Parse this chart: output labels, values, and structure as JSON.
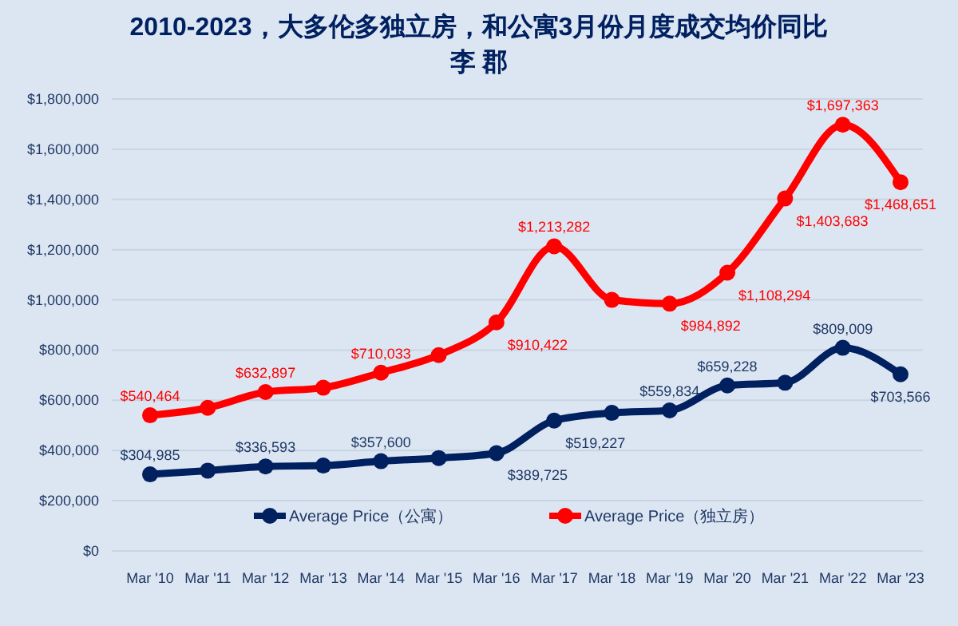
{
  "chart_data": {
    "type": "line",
    "title": "2010-2023，大多伦多独立房，和公寓3月份月度成交均价同比",
    "subtitle": "李 郡",
    "categories": [
      "Mar '10",
      "Mar '11",
      "Mar '12",
      "Mar '13",
      "Mar '14",
      "Mar '15",
      "Mar '16",
      "Mar '17",
      "Mar '18",
      "Mar '19",
      "Mar '20",
      "Mar '21",
      "Mar '22",
      "Mar '23"
    ],
    "series": [
      {
        "name": "Average Price（公寓）",
        "color": "#002060",
        "values": [
          304985,
          320000,
          336593,
          340000,
          357600,
          370000,
          389725,
          519227,
          550000,
          559834,
          659228,
          670000,
          809009,
          703566
        ],
        "value_labels": [
          "$304,985",
          null,
          "$336,593",
          null,
          "$357,600",
          null,
          "$389,725",
          "$519,227",
          null,
          "$559,834",
          "$659,228",
          null,
          "$809,009",
          "$703,566"
        ]
      },
      {
        "name": "Average Price（独立房）",
        "color": "#ff0000",
        "values": [
          540464,
          570000,
          632897,
          650000,
          710033,
          780000,
          910422,
          1213282,
          1000000,
          984892,
          1108294,
          1403683,
          1697363,
          1468651
        ],
        "value_labels": [
          "$540,464",
          null,
          "$632,897",
          null,
          "$710,033",
          null,
          "$910,422",
          "$1,213,282",
          null,
          "$984,892",
          "$1,108,294",
          "$1,403,683",
          "$1,697,363",
          "$1,468,651"
        ]
      }
    ],
    "ylim": [
      0,
      1800000
    ],
    "yticks": [
      {
        "value": 0,
        "label": "$0"
      },
      {
        "value": 200000,
        "label": "$200,000"
      },
      {
        "value": 400000,
        "label": "$400,000"
      },
      {
        "value": 600000,
        "label": "$600,000"
      },
      {
        "value": 800000,
        "label": "$800,000"
      },
      {
        "value": 1000000,
        "label": "$1,000,000"
      },
      {
        "value": 1200000,
        "label": "$1,200,000"
      },
      {
        "value": 1400000,
        "label": "$1,400,000"
      },
      {
        "value": 1600000,
        "label": "$1,600,000"
      },
      {
        "value": 1800000,
        "label": "$1,800,000"
      }
    ],
    "grid": "y",
    "legend": "bottom",
    "marker": "circle",
    "line_style": "solid"
  }
}
